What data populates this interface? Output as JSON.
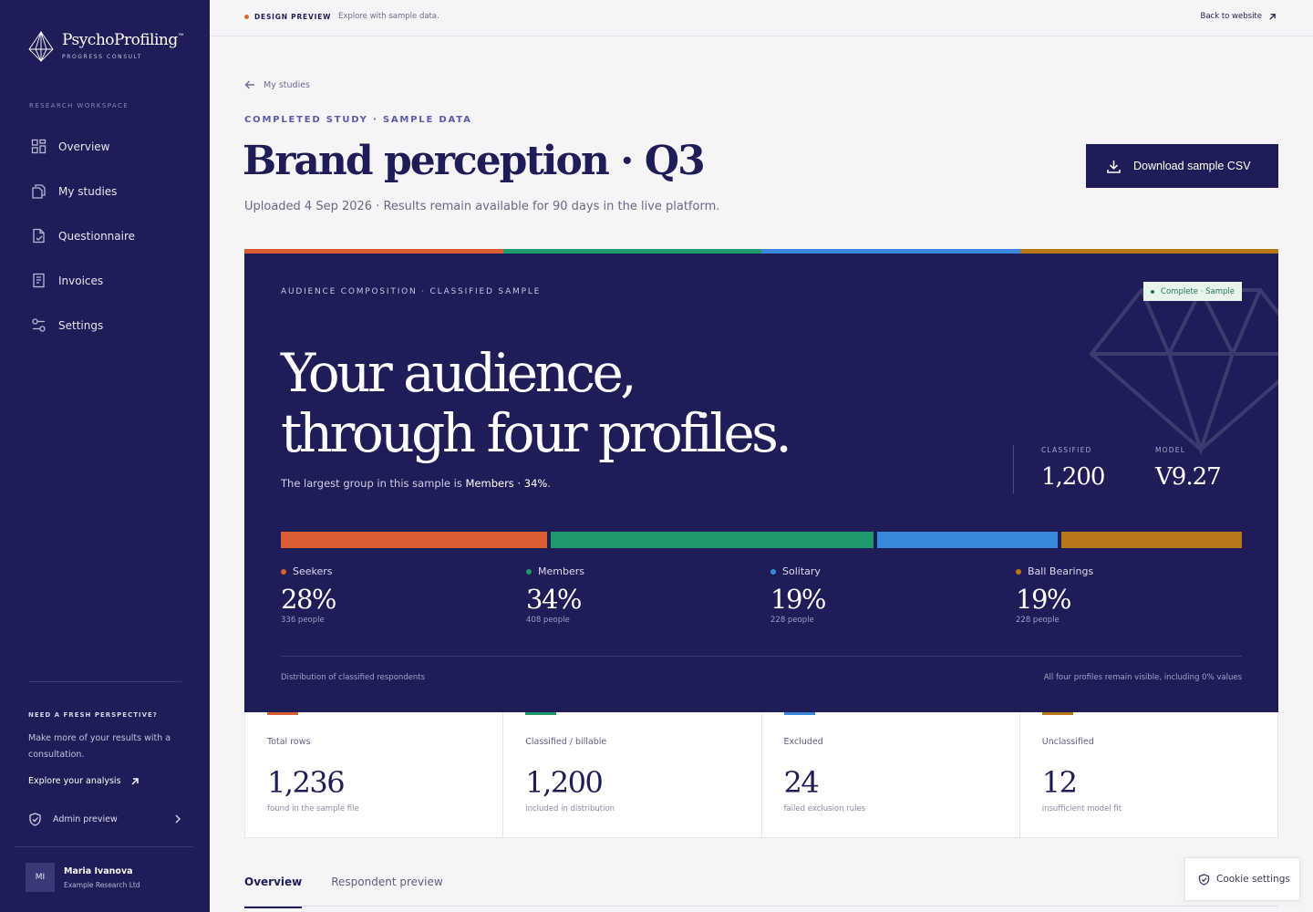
{
  "sidebar": {
    "logo_name": "PsychoProfiling",
    "logo_tm": "™",
    "logo_sub": "PROGRESS CONSULT",
    "workspace_label": "RESEARCH WORKSPACE",
    "nav": [
      {
        "label": "Overview",
        "icon": "grid-icon"
      },
      {
        "label": "My studies",
        "icon": "documents-icon"
      },
      {
        "label": "Questionnaire",
        "icon": "checklist-doc-icon"
      },
      {
        "label": "Invoices",
        "icon": "invoice-icon"
      },
      {
        "label": "Settings",
        "icon": "sliders-icon"
      }
    ],
    "fresh_heading": "NEED A FRESH PERSPECTIVE?",
    "fresh_text": "Make more of your results with a consultation.",
    "explore_label": "Explore your analysis",
    "admin_label": "Admin preview",
    "user": {
      "initials": "MI",
      "name": "Maria Ivanova",
      "org": "Example Research Ltd"
    }
  },
  "topbar": {
    "label": "DESIGN PREVIEW",
    "sub": "Explore with sample data.",
    "back_label": "Back to website"
  },
  "main": {
    "back_link": "My studies",
    "eyebrow": "COMPLETED STUDY · SAMPLE DATA",
    "title": "Brand perception · Q3",
    "uploaded": "Uploaded 4 Sep 2026 · Results remain available for 90 days in the live platform.",
    "download_label": "Download sample CSV"
  },
  "hero": {
    "eyebrow": "AUDIENCE COMPOSITION · CLASSIFIED SAMPLE",
    "badge": "Complete · Sample",
    "headline_line1": "Your audience,",
    "headline_line2": "through four profiles.",
    "largest_prefix": "The largest group in this sample is ",
    "largest_value": "Members · 34%",
    "largest_suffix": ".",
    "classified_label": "CLASSIFIED",
    "classified_value": "1,200",
    "model_label": "MODEL",
    "model_value": "V9.27",
    "profiles": [
      {
        "name": "Seekers",
        "pct": "28%",
        "share": 28,
        "count": "336 people",
        "color": "#d95f33"
      },
      {
        "name": "Members",
        "pct": "34%",
        "share": 34,
        "count": "408 people",
        "color": "#1f9a6b"
      },
      {
        "name": "Solitary",
        "pct": "19%",
        "share": 19,
        "count": "228 people",
        "color": "#3a87de"
      },
      {
        "name": "Ball Bearings",
        "pct": "19%",
        "share": 19,
        "count": "228 people",
        "color": "#b8781a"
      }
    ],
    "footer_left": "Distribution of classified respondents",
    "footer_right": "All four profiles remain visible, including 0% values"
  },
  "stats": [
    {
      "label": "Total rows",
      "value": "1,236",
      "sub": "found in the sample file",
      "color": "#d95f33"
    },
    {
      "label": "Classified / billable",
      "value": "1,200",
      "sub": "included in distribution",
      "color": "#1f9a6b"
    },
    {
      "label": "Excluded",
      "value": "24",
      "sub": "failed exclusion rules",
      "color": "#3a87de"
    },
    {
      "label": "Unclassified",
      "value": "12",
      "sub": "insufficient model fit",
      "color": "#b8781a"
    }
  ],
  "tabs": [
    {
      "label": "Overview",
      "active": true
    },
    {
      "label": "Respondent preview",
      "active": false
    }
  ],
  "cookie_label": "Cookie settings"
}
